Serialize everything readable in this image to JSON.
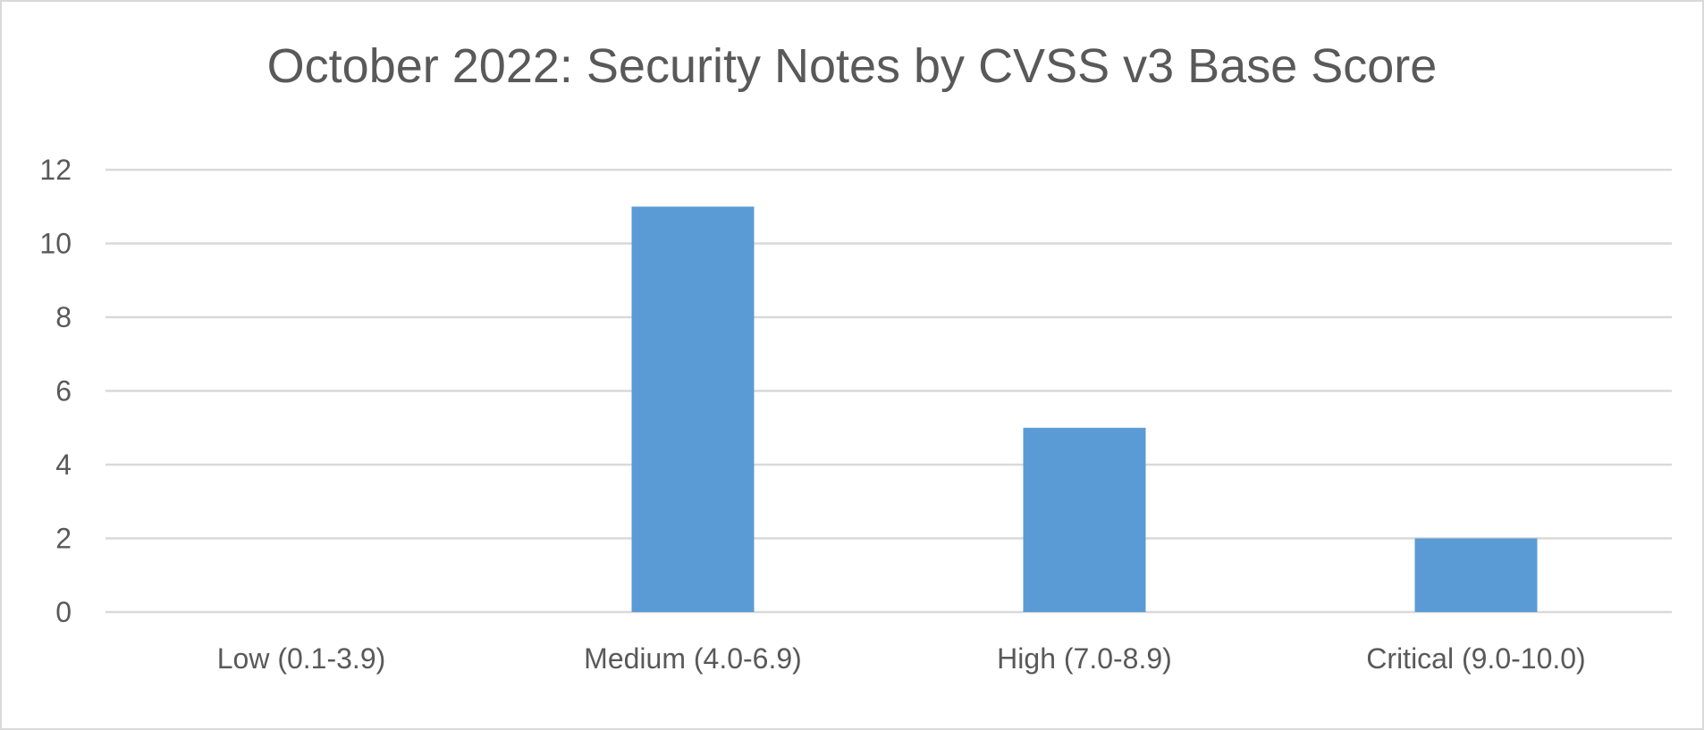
{
  "chart_data": {
    "type": "bar",
    "title": "October 2022: Security Notes by CVSS v3 Base Score",
    "xlabel": "",
    "ylabel": "",
    "categories": [
      "Low (0.1-3.9)",
      "Medium (4.0-6.9)",
      "High (7.0-8.9)",
      "Critical (9.0-10.0)"
    ],
    "values": [
      0,
      11,
      5,
      2
    ],
    "ylim": [
      0,
      12
    ],
    "yticks": [
      "0",
      "2",
      "4",
      "6",
      "8",
      "10",
      "12"
    ],
    "grid": true,
    "legend": "none",
    "bar_color": "#5b9bd5",
    "grid_color": "#d9d9d9"
  }
}
